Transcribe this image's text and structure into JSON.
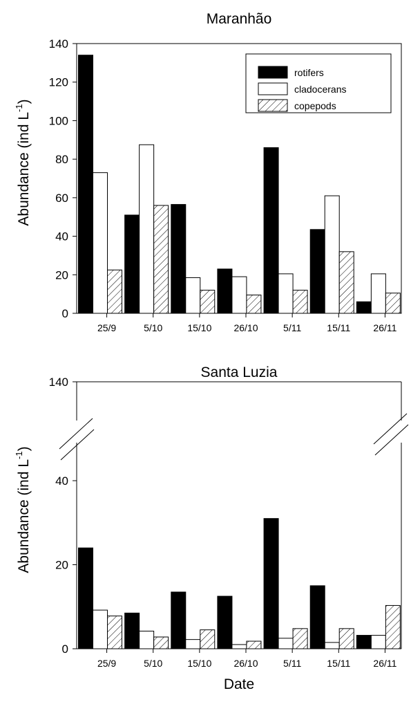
{
  "chart_data": [
    {
      "type": "bar",
      "title": "Maranhão",
      "ylabel": "Abundance (ind L",
      "ylabel_sup": "-1",
      "ylabel_suffix": ")",
      "ylim": [
        0,
        140
      ],
      "yticks": [
        "0",
        "20",
        "40",
        "60",
        "80",
        "100",
        "120",
        "140"
      ],
      "categories": [
        "25/9",
        "5/10",
        "15/10",
        "26/10",
        "5/11",
        "15/11",
        "26/11"
      ],
      "legend_position": "top-right",
      "series": [
        {
          "name": "rotifers",
          "fill": "#000000",
          "values": [
            134,
            51,
            56.5,
            23,
            86,
            43.5,
            6
          ]
        },
        {
          "name": "cladocerans",
          "fill": "#ffffff",
          "values": [
            73,
            87.5,
            18.5,
            19,
            20.5,
            61,
            20.5
          ]
        },
        {
          "name": "copepods",
          "fill": "hatch",
          "values": [
            22.5,
            56,
            12,
            9.5,
            12,
            32,
            10.5
          ]
        }
      ]
    },
    {
      "type": "bar",
      "title": "Santa Luzia",
      "ylabel": "Abundance (ind L",
      "ylabel_sup": "-1",
      "ylabel_suffix": ")",
      "ylim": [
        0,
        140
      ],
      "axis_break": true,
      "yticks": [
        "0",
        "20",
        "40",
        "140"
      ],
      "xlabel": "Date",
      "categories": [
        "25/9",
        "5/10",
        "15/10",
        "26/10",
        "5/11",
        "15/11",
        "26/11"
      ],
      "series": [
        {
          "name": "rotifers",
          "fill": "#000000",
          "values": [
            24,
            8.5,
            13.5,
            12.5,
            31,
            15,
            3.2
          ]
        },
        {
          "name": "cladocerans",
          "fill": "#ffffff",
          "values": [
            9.2,
            4.2,
            2.2,
            1,
            2.5,
            1.5,
            3.2
          ]
        },
        {
          "name": "copepods",
          "fill": "hatch",
          "values": [
            7.8,
            2.8,
            4.5,
            1.8,
            4.8,
            4.8,
            10.3
          ]
        }
      ]
    }
  ]
}
